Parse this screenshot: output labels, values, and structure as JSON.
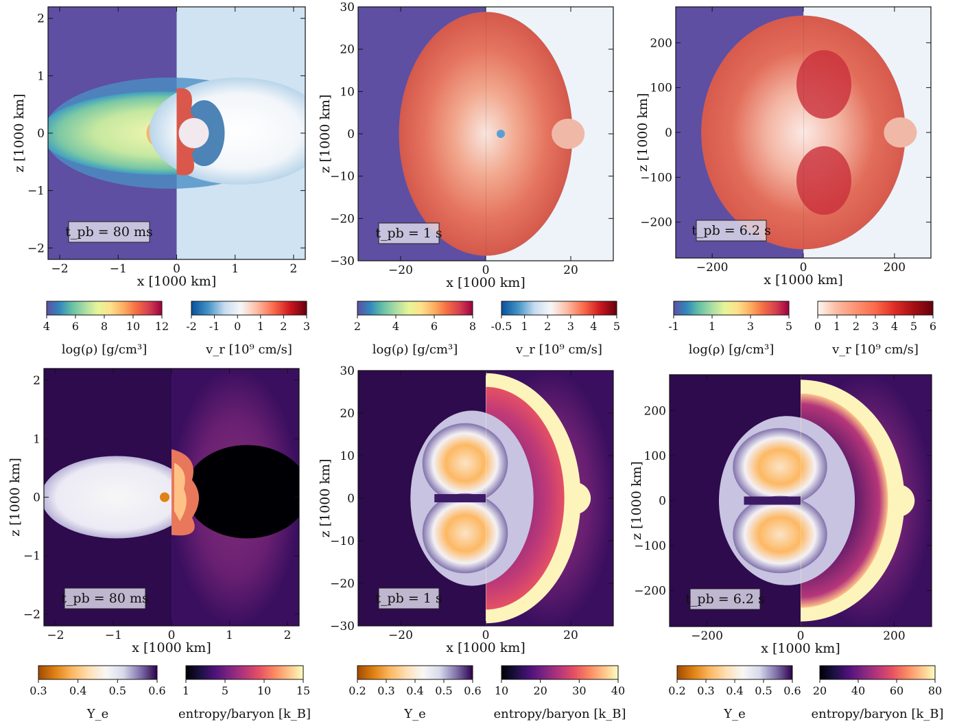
{
  "chart_data": [
    {
      "type": "heatmap",
      "panel": "top-left",
      "time_label": "t_pb = 80 ms",
      "xlabel": "x [1000 km]",
      "ylabel": "z [1000 km]",
      "xlim": [
        -2.2,
        2.2
      ],
      "ylim": [
        -2.2,
        2.2
      ],
      "xticks": [
        -2,
        -1,
        0,
        1,
        2
      ],
      "yticks": [
        -2,
        -1,
        0,
        1,
        2
      ],
      "left_field": {
        "name": "log(ρ) [g/cm³]",
        "colormap": "spectral",
        "ticks": [
          "4",
          "6",
          "8",
          "10",
          "12"
        ]
      },
      "right_field": {
        "name": "v_r [10⁹ cm/s]",
        "colormap": "blue-white-red",
        "ticks": [
          "-2",
          "-1",
          "0",
          "1",
          "2",
          "3"
        ]
      }
    },
    {
      "type": "heatmap",
      "panel": "top-middle",
      "time_label": "t_pb = 1 s",
      "xlabel": "x [1000 km]",
      "ylabel": "z [1000 km]",
      "xlim": [
        -30,
        30
      ],
      "ylim": [
        -30,
        30
      ],
      "xticks": [
        -20,
        0,
        20
      ],
      "yticks": [
        -30,
        -20,
        -10,
        0,
        10,
        20,
        30
      ],
      "left_field": {
        "name": "log(ρ) [g/cm³]",
        "colormap": "spectral",
        "ticks": [
          "2",
          "4",
          "6",
          "8"
        ]
      },
      "right_field": {
        "name": "v_r [10⁹ cm/s]",
        "colormap": "blue-white-red",
        "ticks": [
          "-0.5",
          "1",
          "2",
          "3",
          "4",
          "5"
        ]
      }
    },
    {
      "type": "heatmap",
      "panel": "top-right",
      "time_label": "t_pb = 6.2 s",
      "xlabel": "x [1000 km]",
      "ylabel": "z [1000 km]",
      "xlim": [
        -280,
        280
      ],
      "ylim": [
        -280,
        280
      ],
      "xticks": [
        -200,
        0,
        200
      ],
      "yticks": [
        -200,
        -100,
        0,
        100,
        200
      ],
      "left_field": {
        "name": "log(ρ) [g/cm³]",
        "colormap": "spectral",
        "ticks": [
          "-1",
          "1",
          "3",
          "5"
        ]
      },
      "right_field": {
        "name": "v_r [10⁹ cm/s]",
        "colormap": "white-red",
        "ticks": [
          "0",
          "1",
          "2",
          "3",
          "4",
          "5",
          "6"
        ]
      }
    },
    {
      "type": "heatmap",
      "panel": "bottom-left",
      "time_label": "t_pb = 80 ms",
      "xlabel": "x [1000 km]",
      "ylabel": "z [1000 km]",
      "xlim": [
        -2.2,
        2.2
      ],
      "ylim": [
        -2.2,
        2.2
      ],
      "xticks": [
        -2,
        -1,
        0,
        1,
        2
      ],
      "yticks": [
        -2,
        -1,
        0,
        1,
        2
      ],
      "left_field": {
        "name": "Y_e",
        "colormap": "orange-white-purple",
        "ticks": [
          "0.3",
          "0.4",
          "0.5",
          "0.6"
        ]
      },
      "right_field": {
        "name": "entropy/baryon [k_B]",
        "colormap": "magma",
        "ticks": [
          "1",
          "5",
          "10",
          "15"
        ]
      }
    },
    {
      "type": "heatmap",
      "panel": "bottom-middle",
      "time_label": "t_pb = 1 s",
      "xlabel": "x [1000 km]",
      "ylabel": "z [1000 km]",
      "xlim": [
        -30,
        30
      ],
      "ylim": [
        -30,
        30
      ],
      "xticks": [
        -20,
        0,
        20
      ],
      "yticks": [
        -30,
        -20,
        -10,
        0,
        10,
        20,
        30
      ],
      "left_field": {
        "name": "Y_e",
        "colormap": "orange-white-purple",
        "ticks": [
          "0.2",
          "0.3",
          "0.4",
          "0.5",
          "0.6"
        ]
      },
      "right_field": {
        "name": "entropy/baryon [k_B]",
        "colormap": "magma",
        "ticks": [
          "10",
          "20",
          "30",
          "40"
        ]
      }
    },
    {
      "type": "heatmap",
      "panel": "bottom-right",
      "time_label": "t_pb = 6.2 s",
      "xlabel": "x [1000 km]",
      "ylabel": "z [1000 km]",
      "xlim": [
        -280,
        280
      ],
      "ylim": [
        -280,
        280
      ],
      "xticks": [
        -200,
        0,
        200
      ],
      "yticks": [
        -200,
        -100,
        0,
        100,
        200
      ],
      "left_field": {
        "name": "Y_e",
        "colormap": "orange-white-purple",
        "ticks": [
          "0.2",
          "0.3",
          "0.4",
          "0.5",
          "0.6"
        ]
      },
      "right_field": {
        "name": "entropy/baryon [k_B]",
        "colormap": "magma",
        "ticks": [
          "20",
          "40",
          "60",
          "80"
        ]
      }
    }
  ],
  "colormaps": {
    "spectral": [
      "#5e4fa2",
      "#3288bd",
      "#66c2a5",
      "#abdda4",
      "#e6f598",
      "#fee08b",
      "#fdae61",
      "#f46d43",
      "#d53e4f",
      "#9e0142"
    ],
    "blue-white-red": [
      "#08519c",
      "#4292c6",
      "#c6dbef",
      "#f7f7f7",
      "#fcbba1",
      "#fb6a4a",
      "#cb181d",
      "#67000d"
    ],
    "white-red": [
      "#fff5f0",
      "#fcbba1",
      "#fc9272",
      "#fb6a4a",
      "#de2d26",
      "#a50f15",
      "#67000d"
    ],
    "orange-white-purple": [
      "#a14a00",
      "#e08214",
      "#fdb863",
      "#fee0b6",
      "#f7f7f7",
      "#d8daeb",
      "#8073ac",
      "#2d004b"
    ],
    "magma": [
      "#000004",
      "#1c1044",
      "#4f127b",
      "#812581",
      "#b5367a",
      "#e55064",
      "#fb8761",
      "#fec287",
      "#fcfdbf"
    ]
  }
}
